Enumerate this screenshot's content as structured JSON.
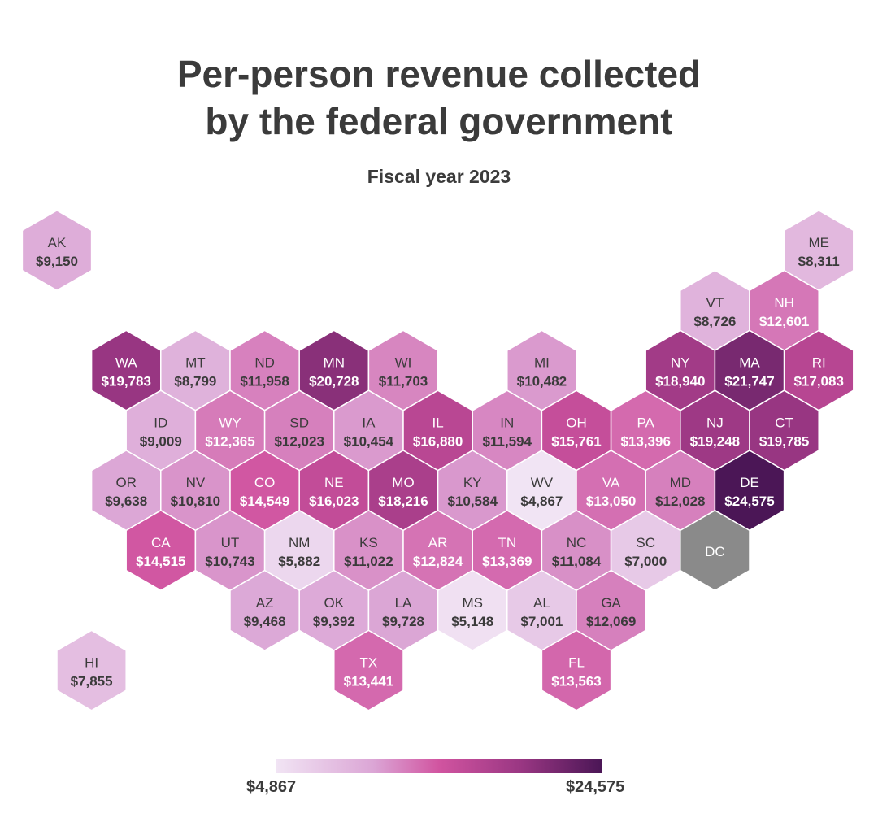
{
  "title_line1": "Per-person revenue collected",
  "title_line2": "by the federal government",
  "subtitle": "Fiscal year 2023",
  "legend": {
    "min_label": "$4,867",
    "max_label": "$24,575",
    "min_value": 4867,
    "max_value": 24575,
    "stops": [
      "#f1e4f4",
      "#dba5d5",
      "#d154a0",
      "#9a3783",
      "#4b1656"
    ]
  },
  "colors": {
    "no_data": "#8a8a8a",
    "text_dark": "#3b3b3b",
    "text_light": "#ffffff"
  },
  "states": [
    {
      "code": "AK",
      "label": "$9,150",
      "value": 9150,
      "row": 0,
      "col": 0
    },
    {
      "code": "ME",
      "label": "$8,311",
      "value": 8311,
      "row": 0,
      "col": 11
    },
    {
      "code": "VT",
      "label": "$8,726",
      "value": 8726,
      "row": 1,
      "col": 9.5
    },
    {
      "code": "NH",
      "label": "$12,601",
      "value": 12601,
      "row": 1,
      "col": 10.5
    },
    {
      "code": "WA",
      "label": "$19,783",
      "value": 19783,
      "row": 2,
      "col": 1
    },
    {
      "code": "MT",
      "label": "$8,799",
      "value": 8799,
      "row": 2,
      "col": 2
    },
    {
      "code": "ND",
      "label": "$11,958",
      "value": 11958,
      "row": 2,
      "col": 3
    },
    {
      "code": "MN",
      "label": "$20,728",
      "value": 20728,
      "row": 2,
      "col": 4
    },
    {
      "code": "WI",
      "label": "$11,703",
      "value": 11703,
      "row": 2,
      "col": 5
    },
    {
      "code": "MI",
      "label": "$10,482",
      "value": 10482,
      "row": 2,
      "col": 7
    },
    {
      "code": "NY",
      "label": "$18,940",
      "value": 18940,
      "row": 2,
      "col": 9
    },
    {
      "code": "MA",
      "label": "$21,747",
      "value": 21747,
      "row": 2,
      "col": 10
    },
    {
      "code": "RI",
      "label": "$17,083",
      "value": 17083,
      "row": 2,
      "col": 11
    },
    {
      "code": "ID",
      "label": "$9,009",
      "value": 9009,
      "row": 3,
      "col": 1.5
    },
    {
      "code": "WY",
      "label": "$12,365",
      "value": 12365,
      "row": 3,
      "col": 2.5
    },
    {
      "code": "SD",
      "label": "$12,023",
      "value": 12023,
      "row": 3,
      "col": 3.5
    },
    {
      "code": "IA",
      "label": "$10,454",
      "value": 10454,
      "row": 3,
      "col": 4.5
    },
    {
      "code": "IL",
      "label": "$16,880",
      "value": 16880,
      "row": 3,
      "col": 5.5
    },
    {
      "code": "IN",
      "label": "$11,594",
      "value": 11594,
      "row": 3,
      "col": 6.5
    },
    {
      "code": "OH",
      "label": "$15,761",
      "value": 15761,
      "row": 3,
      "col": 7.5
    },
    {
      "code": "PA",
      "label": "$13,396",
      "value": 13396,
      "row": 3,
      "col": 8.5
    },
    {
      "code": "NJ",
      "label": "$19,248",
      "value": 19248,
      "row": 3,
      "col": 9.5
    },
    {
      "code": "CT",
      "label": "$19,785",
      "value": 19785,
      "row": 3,
      "col": 10.5
    },
    {
      "code": "OR",
      "label": "$9,638",
      "value": 9638,
      "row": 4,
      "col": 1
    },
    {
      "code": "NV",
      "label": "$10,810",
      "value": 10810,
      "row": 4,
      "col": 2
    },
    {
      "code": "CO",
      "label": "$14,549",
      "value": 14549,
      "row": 4,
      "col": 3
    },
    {
      "code": "NE",
      "label": "$16,023",
      "value": 16023,
      "row": 4,
      "col": 4
    },
    {
      "code": "MO",
      "label": "$18,216",
      "value": 18216,
      "row": 4,
      "col": 5
    },
    {
      "code": "KY",
      "label": "$10,584",
      "value": 10584,
      "row": 4,
      "col": 6
    },
    {
      "code": "WV",
      "label": "$4,867",
      "value": 4867,
      "row": 4,
      "col": 7
    },
    {
      "code": "VA",
      "label": "$13,050",
      "value": 13050,
      "row": 4,
      "col": 8
    },
    {
      "code": "MD",
      "label": "$12,028",
      "value": 12028,
      "row": 4,
      "col": 9
    },
    {
      "code": "DE",
      "label": "$24,575",
      "value": 24575,
      "row": 4,
      "col": 10
    },
    {
      "code": "CA",
      "label": "$14,515",
      "value": 14515,
      "row": 5,
      "col": 1.5
    },
    {
      "code": "UT",
      "label": "$10,743",
      "value": 10743,
      "row": 5,
      "col": 2.5
    },
    {
      "code": "NM",
      "label": "$5,882",
      "value": 5882,
      "row": 5,
      "col": 3.5
    },
    {
      "code": "KS",
      "label": "$11,022",
      "value": 11022,
      "row": 5,
      "col": 4.5
    },
    {
      "code": "AR",
      "label": "$12,824",
      "value": 12824,
      "row": 5,
      "col": 5.5
    },
    {
      "code": "TN",
      "label": "$13,369",
      "value": 13369,
      "row": 5,
      "col": 6.5
    },
    {
      "code": "NC",
      "label": "$11,084",
      "value": 11084,
      "row": 5,
      "col": 7.5
    },
    {
      "code": "SC",
      "label": "$7,000",
      "value": 7000,
      "row": 5,
      "col": 8.5
    },
    {
      "code": "DC",
      "label": "",
      "value": null,
      "row": 5,
      "col": 9.5
    },
    {
      "code": "AZ",
      "label": "$9,468",
      "value": 9468,
      "row": 6,
      "col": 3
    },
    {
      "code": "OK",
      "label": "$9,392",
      "value": 9392,
      "row": 6,
      "col": 4
    },
    {
      "code": "LA",
      "label": "$9,728",
      "value": 9728,
      "row": 6,
      "col": 5
    },
    {
      "code": "MS",
      "label": "$5,148",
      "value": 5148,
      "row": 6,
      "col": 6
    },
    {
      "code": "AL",
      "label": "$7,001",
      "value": 7001,
      "row": 6,
      "col": 7
    },
    {
      "code": "GA",
      "label": "$12,069",
      "value": 12069,
      "row": 6,
      "col": 8
    },
    {
      "code": "HI",
      "label": "$7,855",
      "value": 7855,
      "row": 7,
      "col": 0.5
    },
    {
      "code": "TX",
      "label": "$13,441",
      "value": 13441,
      "row": 7,
      "col": 4.5
    },
    {
      "code": "FL",
      "label": "$13,563",
      "value": 13563,
      "row": 7,
      "col": 7.5
    }
  ]
}
